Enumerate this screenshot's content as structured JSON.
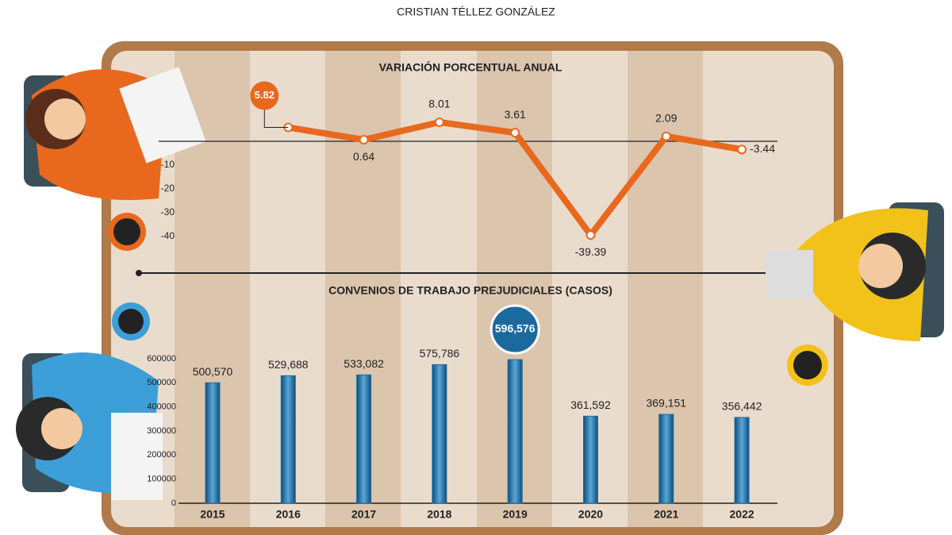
{
  "header": {
    "author": "CRISTIAN TÉLLEZ GONZÁLEZ"
  },
  "chart_data": [
    {
      "type": "line",
      "title": "VARIACIÓN PORCENTUAL ANUAL",
      "values": [
        null,
        5.82,
        0.64,
        8.01,
        3.61,
        -39.39,
        2.09,
        -3.44
      ],
      "color": "#e8691e",
      "ylim": [
        -50,
        30
      ],
      "yticks": [
        -10,
        -20,
        -30,
        -40
      ]
    },
    {
      "type": "bar",
      "title": "CONVENIOS DE TRABAJO PREJUDICIALES (CASOS)",
      "categories": [
        "2015",
        "2016",
        "2017",
        "2018",
        "2019",
        "2020",
        "2021",
        "2022"
      ],
      "values": [
        500570,
        529688,
        533082,
        575786,
        596576,
        361592,
        369151,
        356442
      ],
      "value_labels": [
        "500,570",
        "529,688",
        "533,082",
        "575,786",
        "596,576",
        "361,592",
        "369,151",
        "356,442"
      ],
      "color": "#1a6aa0",
      "ylim": [
        0,
        600000
      ],
      "yticks": [
        0,
        100000,
        200000,
        300000,
        400000,
        500000,
        600000
      ]
    }
  ]
}
